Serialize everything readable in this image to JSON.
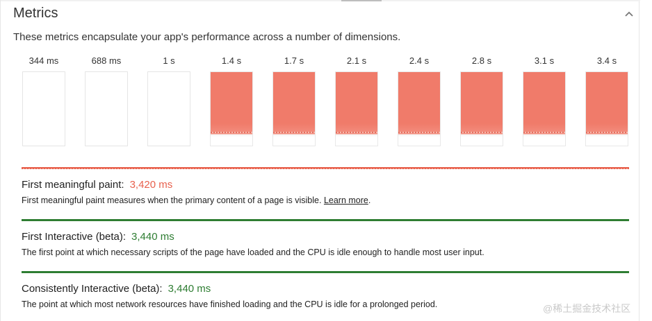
{
  "header": {
    "title": "Metrics",
    "subtitle": "These metrics encapsulate your app's performance across a number of dimensions."
  },
  "filmstrip": [
    {
      "time": "344 ms",
      "painted": false
    },
    {
      "time": "688 ms",
      "painted": false
    },
    {
      "time": "1 s",
      "painted": false
    },
    {
      "time": "1.4 s",
      "painted": true
    },
    {
      "time": "1.7 s",
      "painted": true
    },
    {
      "time": "2.1 s",
      "painted": true
    },
    {
      "time": "2.4 s",
      "painted": true
    },
    {
      "time": "2.8 s",
      "painted": true
    },
    {
      "time": "3.1 s",
      "painted": true
    },
    {
      "time": "3.4 s",
      "painted": true
    }
  ],
  "metrics": [
    {
      "name": "First meaningful paint:",
      "value": "3,420 ms",
      "status_color": "#e8614d",
      "description": "First meaningful paint measures when the primary content of a page is visible. ",
      "link": "Learn more",
      "link_suffix": "."
    },
    {
      "name": "First Interactive (beta):",
      "value": "3,440 ms",
      "status_color": "#2e7d32",
      "description": "The first point at which necessary scripts of the page have loaded and the CPU is idle enough to handle most user input."
    },
    {
      "name": "Consistently Interactive (beta):",
      "value": "3,440 ms",
      "status_color": "#2e7d32",
      "description": "The point at which most network resources have finished loading and the CPU is idle for a prolonged period."
    }
  ],
  "icons": {
    "collapse": "chevron-up-icon"
  },
  "colors": {
    "fail": "#e8614d",
    "pass": "#2e7d32",
    "thumb_fill": "#f07b6a"
  },
  "watermark": "@稀土掘金技术社区"
}
